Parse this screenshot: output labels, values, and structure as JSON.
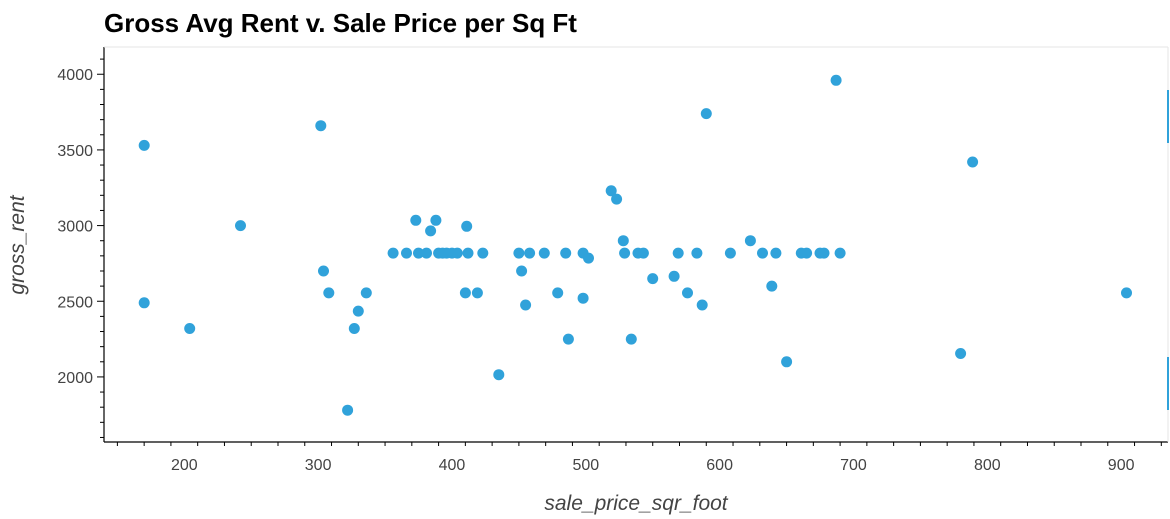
{
  "chart_data": {
    "type": "scatter",
    "title": "Gross Avg Rent v. Sale Price per Sq Ft",
    "xlabel": "sale_price_sqr_foot",
    "ylabel": "gross_rent",
    "xlim": [
      140,
      935
    ],
    "ylim": [
      1570,
      4180
    ],
    "x_ticks": [
      200,
      300,
      400,
      500,
      600,
      700,
      800,
      900
    ],
    "y_ticks": [
      2000,
      2500,
      3000,
      3500,
      4000
    ],
    "x_tick_labels": [
      "200",
      "300",
      "400",
      "500",
      "600",
      "700",
      "800",
      "900"
    ],
    "y_tick_labels": [
      "2000",
      "2500",
      "3000",
      "3500",
      "4000"
    ],
    "grid": false,
    "color": "#30a2da",
    "points": [
      [
        170,
        3530
      ],
      [
        170,
        2490
      ],
      [
        204,
        2320
      ],
      [
        242,
        3000
      ],
      [
        302,
        3660
      ],
      [
        304,
        2700
      ],
      [
        308,
        2555
      ],
      [
        322,
        1780
      ],
      [
        327,
        2320
      ],
      [
        330,
        2435
      ],
      [
        336,
        2555
      ],
      [
        356,
        2818
      ],
      [
        366,
        2818
      ],
      [
        373,
        3035
      ],
      [
        375,
        2818
      ],
      [
        381,
        2818
      ],
      [
        384,
        2965
      ],
      [
        388,
        3035
      ],
      [
        390,
        2818
      ],
      [
        393,
        2818
      ],
      [
        396,
        2818
      ],
      [
        400,
        2818
      ],
      [
        404,
        2818
      ],
      [
        410,
        2555
      ],
      [
        411,
        2995
      ],
      [
        412,
        2818
      ],
      [
        419,
        2555
      ],
      [
        423,
        2818
      ],
      [
        435,
        2015
      ],
      [
        450,
        2818
      ],
      [
        452,
        2700
      ],
      [
        455,
        2475
      ],
      [
        458,
        2818
      ],
      [
        469,
        2818
      ],
      [
        479,
        2555
      ],
      [
        485,
        2818
      ],
      [
        487,
        2250
      ],
      [
        498,
        2818
      ],
      [
        498,
        2520
      ],
      [
        502,
        2785
      ],
      [
        519,
        3230
      ],
      [
        523,
        3175
      ],
      [
        528,
        2900
      ],
      [
        529,
        2818
      ],
      [
        534,
        2250
      ],
      [
        539,
        2818
      ],
      [
        543,
        2818
      ],
      [
        550,
        2650
      ],
      [
        566,
        2665
      ],
      [
        569,
        2818
      ],
      [
        576,
        2555
      ],
      [
        583,
        2818
      ],
      [
        587,
        2475
      ],
      [
        590,
        3740
      ],
      [
        608,
        2818
      ],
      [
        623,
        2900
      ],
      [
        632,
        2818
      ],
      [
        639,
        2600
      ],
      [
        642,
        2818
      ],
      [
        650,
        2100
      ],
      [
        661,
        2818
      ],
      [
        665,
        2818
      ],
      [
        675,
        2818
      ],
      [
        678,
        2818
      ],
      [
        687,
        3960
      ],
      [
        690,
        2818
      ],
      [
        780,
        2155
      ],
      [
        789,
        3420
      ],
      [
        904,
        2555
      ]
    ]
  }
}
